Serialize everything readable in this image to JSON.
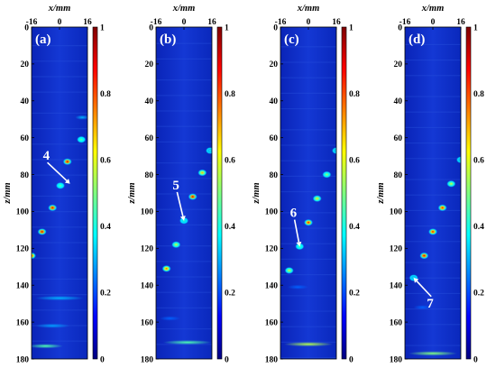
{
  "chart_data": {
    "type": "heatmap",
    "colorscale": [
      "#00007f",
      "#0000ff",
      "#007fff",
      "#00ffff",
      "#7fff7f",
      "#ffff00",
      "#ff7f00",
      "#ff0000",
      "#7f0000"
    ],
    "background": "#1030c8",
    "colorbar_ticks": [
      "1",
      "0.8",
      "0.6",
      "0.4",
      "0.2",
      "0"
    ],
    "x_label": "x/mm",
    "z_label": "z/mm",
    "x_ticks": [
      -16,
      0,
      16
    ],
    "z_ticks": [
      0,
      20,
      40,
      60,
      80,
      100,
      120,
      140,
      160,
      180
    ],
    "x_range": [
      -16,
      16
    ],
    "z_range": [
      0,
      180
    ],
    "panels": [
      {
        "label": "(a)",
        "annotation": {
          "text": "4",
          "target": [
            6,
            85
          ],
          "text_pos": [
            -9,
            72
          ]
        },
        "spots": [
          {
            "x": 12.5,
            "z": 61,
            "v": 0.5
          },
          {
            "x": 4.5,
            "z": 73,
            "v": 0.95
          },
          {
            "x": 0.5,
            "z": 86,
            "v": 0.5
          },
          {
            "x": -4,
            "z": 98,
            "v": 0.95
          },
          {
            "x": -10,
            "z": 111,
            "v": 0.95
          },
          {
            "x": -16,
            "z": 124,
            "v": 0.85
          }
        ],
        "streaks": [
          {
            "x": 0,
            "z": 147,
            "w": 14,
            "v": 0.3
          },
          {
            "x": -4,
            "z": 162,
            "w": 10,
            "v": 0.28
          },
          {
            "x": -8,
            "z": 173,
            "w": 10,
            "v": 0.45
          },
          {
            "x": 13,
            "z": 49,
            "w": 4,
            "v": 0.3
          }
        ]
      },
      {
        "label": "(b)",
        "annotation": {
          "text": "5",
          "target": [
            0,
            105
          ],
          "text_pos": [
            -6,
            88
          ]
        },
        "spots": [
          {
            "x": 15,
            "z": 67,
            "v": 0.4
          },
          {
            "x": 10.5,
            "z": 79,
            "v": 0.7
          },
          {
            "x": 5,
            "z": 92,
            "v": 0.95
          },
          {
            "x": 0,
            "z": 105,
            "v": 0.45
          },
          {
            "x": -4.5,
            "z": 118,
            "v": 0.6
          },
          {
            "x": -10,
            "z": 131,
            "v": 0.8
          }
        ],
        "streaks": [
          {
            "x": 2,
            "z": 171,
            "w": 14,
            "v": 0.45
          },
          {
            "x": -8,
            "z": 158,
            "w": 6,
            "v": 0.22
          }
        ]
      },
      {
        "label": "(c)",
        "annotation": {
          "text": "6",
          "target": [
            -5,
            119
          ],
          "text_pos": [
            -10,
            103
          ]
        },
        "spots": [
          {
            "x": 16,
            "z": 67,
            "v": 0.4
          },
          {
            "x": 10.5,
            "z": 80,
            "v": 0.55
          },
          {
            "x": 5,
            "z": 93,
            "v": 0.65
          },
          {
            "x": 0,
            "z": 106,
            "v": 0.9
          },
          {
            "x": -5,
            "z": 119,
            "v": 0.5
          },
          {
            "x": -11,
            "z": 132,
            "v": 0.6
          }
        ],
        "streaks": [
          {
            "x": 0,
            "z": 172,
            "w": 14,
            "v": 0.55
          },
          {
            "x": -6,
            "z": 141,
            "w": 6,
            "v": 0.22
          }
        ]
      },
      {
        "label": "(d)",
        "annotation": {
          "text": "7",
          "target": [
            -11,
            136
          ],
          "text_pos": [
            -3,
            152
          ]
        },
        "spots": [
          {
            "x": 16,
            "z": 72,
            "v": 0.4
          },
          {
            "x": 10.5,
            "z": 85,
            "v": 0.6
          },
          {
            "x": 5.5,
            "z": 98,
            "v": 0.9
          },
          {
            "x": 0,
            "z": 111,
            "v": 0.9
          },
          {
            "x": -5,
            "z": 124,
            "v": 0.95
          },
          {
            "x": -11,
            "z": 136,
            "v": 0.4
          }
        ],
        "streaks": [
          {
            "x": 0,
            "z": 177,
            "w": 14,
            "v": 0.5
          },
          {
            "x": -6,
            "z": 152,
            "w": 5,
            "v": 0.22
          }
        ]
      }
    ]
  }
}
